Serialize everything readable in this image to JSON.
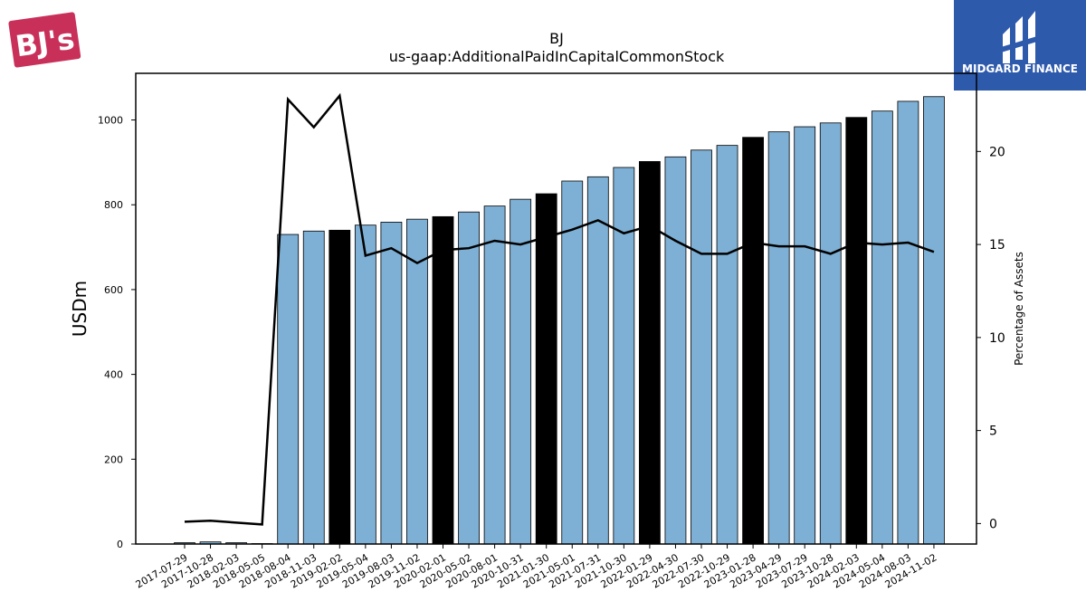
{
  "logos": {
    "company_text": "BJ's",
    "company_color": "#c8305a",
    "brand_text": "MIDGARD FINANCE",
    "brand_color": "#2e5aac"
  },
  "chart_data": {
    "type": "bar",
    "title": "BJ",
    "subtitle": "us-gaap:AdditionalPaidInCapitalCommonStock",
    "ylabel": "USDm",
    "y2label": "Percentage of Assets",
    "ylim": [
      0,
      1110
    ],
    "y2lim": [
      -1.1,
      24.2
    ],
    "yticks": [
      0,
      200,
      400,
      600,
      800,
      1000
    ],
    "y2ticks": [
      0,
      5,
      10,
      15,
      20
    ],
    "bar_color": "#7eb0d5",
    "highlight_color": "#000000",
    "line_color": "#000000",
    "categories": [
      "2017-07-29",
      "2017-10-28",
      "2018-02-03",
      "2018-05-05",
      "2018-08-04",
      "2018-11-03",
      "2019-02-02",
      "2019-05-04",
      "2019-08-03",
      "2019-11-02",
      "2020-02-01",
      "2020-05-02",
      "2020-08-01",
      "2020-10-31",
      "2021-01-30",
      "2021-05-01",
      "2021-07-31",
      "2021-10-30",
      "2022-01-29",
      "2022-04-30",
      "2022-07-30",
      "2022-10-29",
      "2023-01-28",
      "2023-04-29",
      "2023-07-29",
      "2023-10-28",
      "2024-02-03",
      "2024-05-04",
      "2024-08-03",
      "2024-11-02"
    ],
    "series": [
      {
        "values": [
          3,
          5,
          3,
          1,
          730,
          738,
          740,
          752,
          759,
          766,
          772,
          783,
          797,
          813,
          826,
          856,
          866,
          888,
          902,
          913,
          929,
          940,
          959,
          972,
          984,
          993,
          1006,
          1021,
          1044,
          1055
        ],
        "highlight": [
          false,
          false,
          false,
          false,
          false,
          false,
          true,
          false,
          false,
          false,
          true,
          false,
          false,
          false,
          true,
          false,
          false,
          false,
          true,
          false,
          false,
          false,
          true,
          false,
          false,
          false,
          true,
          false,
          false,
          false
        ]
      },
      {
        "axis": "right",
        "values": [
          0.1,
          0.15,
          0.05,
          -0.05,
          22.8,
          21.3,
          23.0,
          14.4,
          14.8,
          14.0,
          14.7,
          14.8,
          15.2,
          15.0,
          15.4,
          15.8,
          16.3,
          15.6,
          16.0,
          15.2,
          14.5,
          14.5,
          15.1,
          14.9,
          14.9,
          14.5,
          15.1,
          15.0,
          15.1,
          14.6
        ]
      }
    ]
  }
}
